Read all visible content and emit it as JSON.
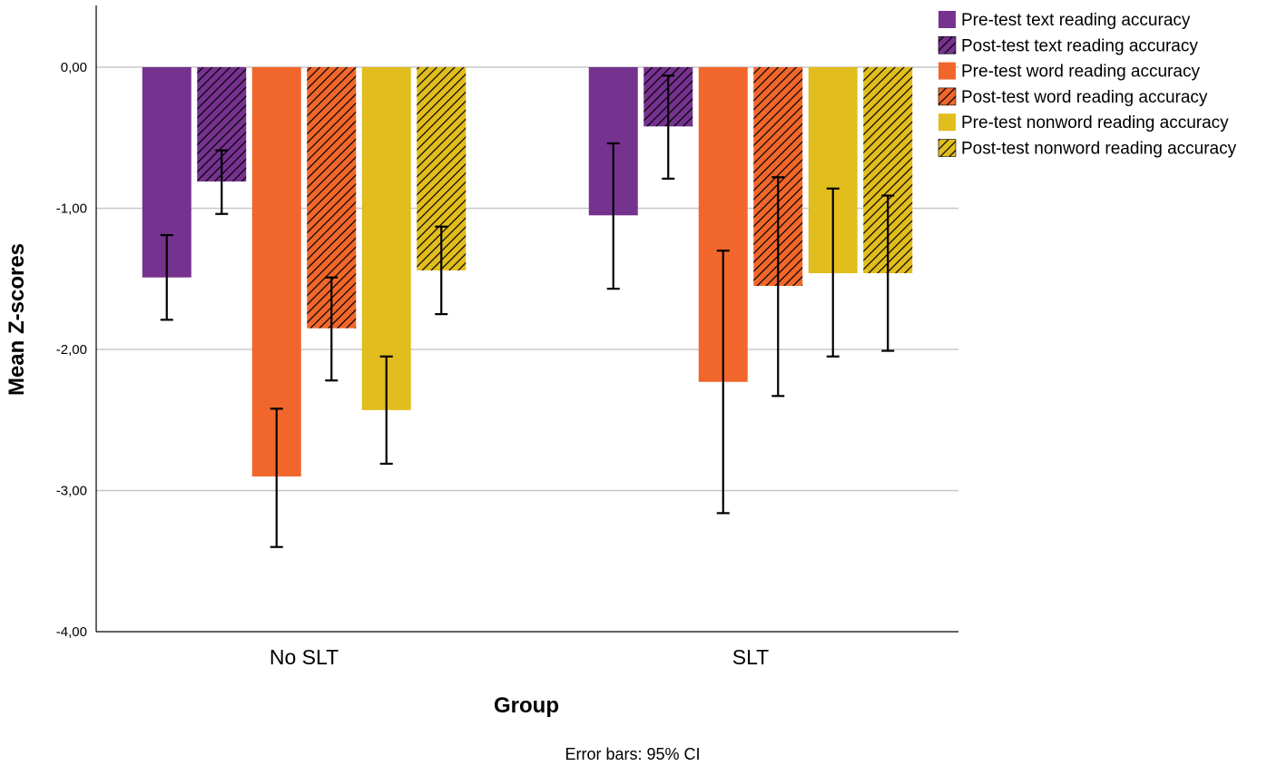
{
  "chart_data": {
    "type": "bar",
    "title": "",
    "xlabel": "Group",
    "ylabel": "Mean Z-scores",
    "ylim": [
      -4,
      0.45
    ],
    "yticks": [
      0,
      -1,
      -2,
      -3,
      -4
    ],
    "ytick_labels": [
      "0,00",
      "-1,00",
      "-2,00",
      "-3,00",
      "-4,00"
    ],
    "categories": [
      "No SLT",
      "SLT"
    ],
    "series": [
      {
        "name": "Pre-test text reading accuracy",
        "color": "#76328f",
        "hatched": false,
        "values": [
          -1.49,
          -1.05
        ],
        "ci_low": [
          -1.79,
          -1.57
        ],
        "ci_high": [
          -1.19,
          -0.54
        ]
      },
      {
        "name": "Post-test text reading accuracy",
        "color": "#76328f",
        "hatched": true,
        "values": [
          -0.81,
          -0.42
        ],
        "ci_low": [
          -1.04,
          -0.79
        ],
        "ci_high": [
          -0.59,
          -0.06
        ]
      },
      {
        "name": "Pre-test word reading accuracy",
        "color": "#f1672b",
        "hatched": false,
        "values": [
          -2.9,
          -2.23
        ],
        "ci_low": [
          -3.4,
          -3.16
        ],
        "ci_high": [
          -2.42,
          -1.3
        ]
      },
      {
        "name": "Post-test word reading accuracy",
        "color": "#f1672b",
        "hatched": true,
        "values": [
          -1.85,
          -1.55
        ],
        "ci_low": [
          -2.22,
          -2.33
        ],
        "ci_high": [
          -1.49,
          -0.78
        ]
      },
      {
        "name": "Pre-test nonword reading accuracy",
        "color": "#e1bd1e",
        "hatched": false,
        "values": [
          -2.43,
          -1.46
        ],
        "ci_low": [
          -2.81,
          -2.05
        ],
        "ci_high": [
          -2.05,
          -0.86
        ]
      },
      {
        "name": "Post-test nonword reading accuracy",
        "color": "#e1bd1e",
        "hatched": true,
        "values": [
          -1.44,
          -1.46
        ],
        "ci_low": [
          -1.75,
          -2.01
        ],
        "ci_high": [
          -1.13,
          -0.91
        ]
      }
    ],
    "grid": true,
    "legend_position": "top-right",
    "footnote": "Error bars: 95% CI"
  }
}
